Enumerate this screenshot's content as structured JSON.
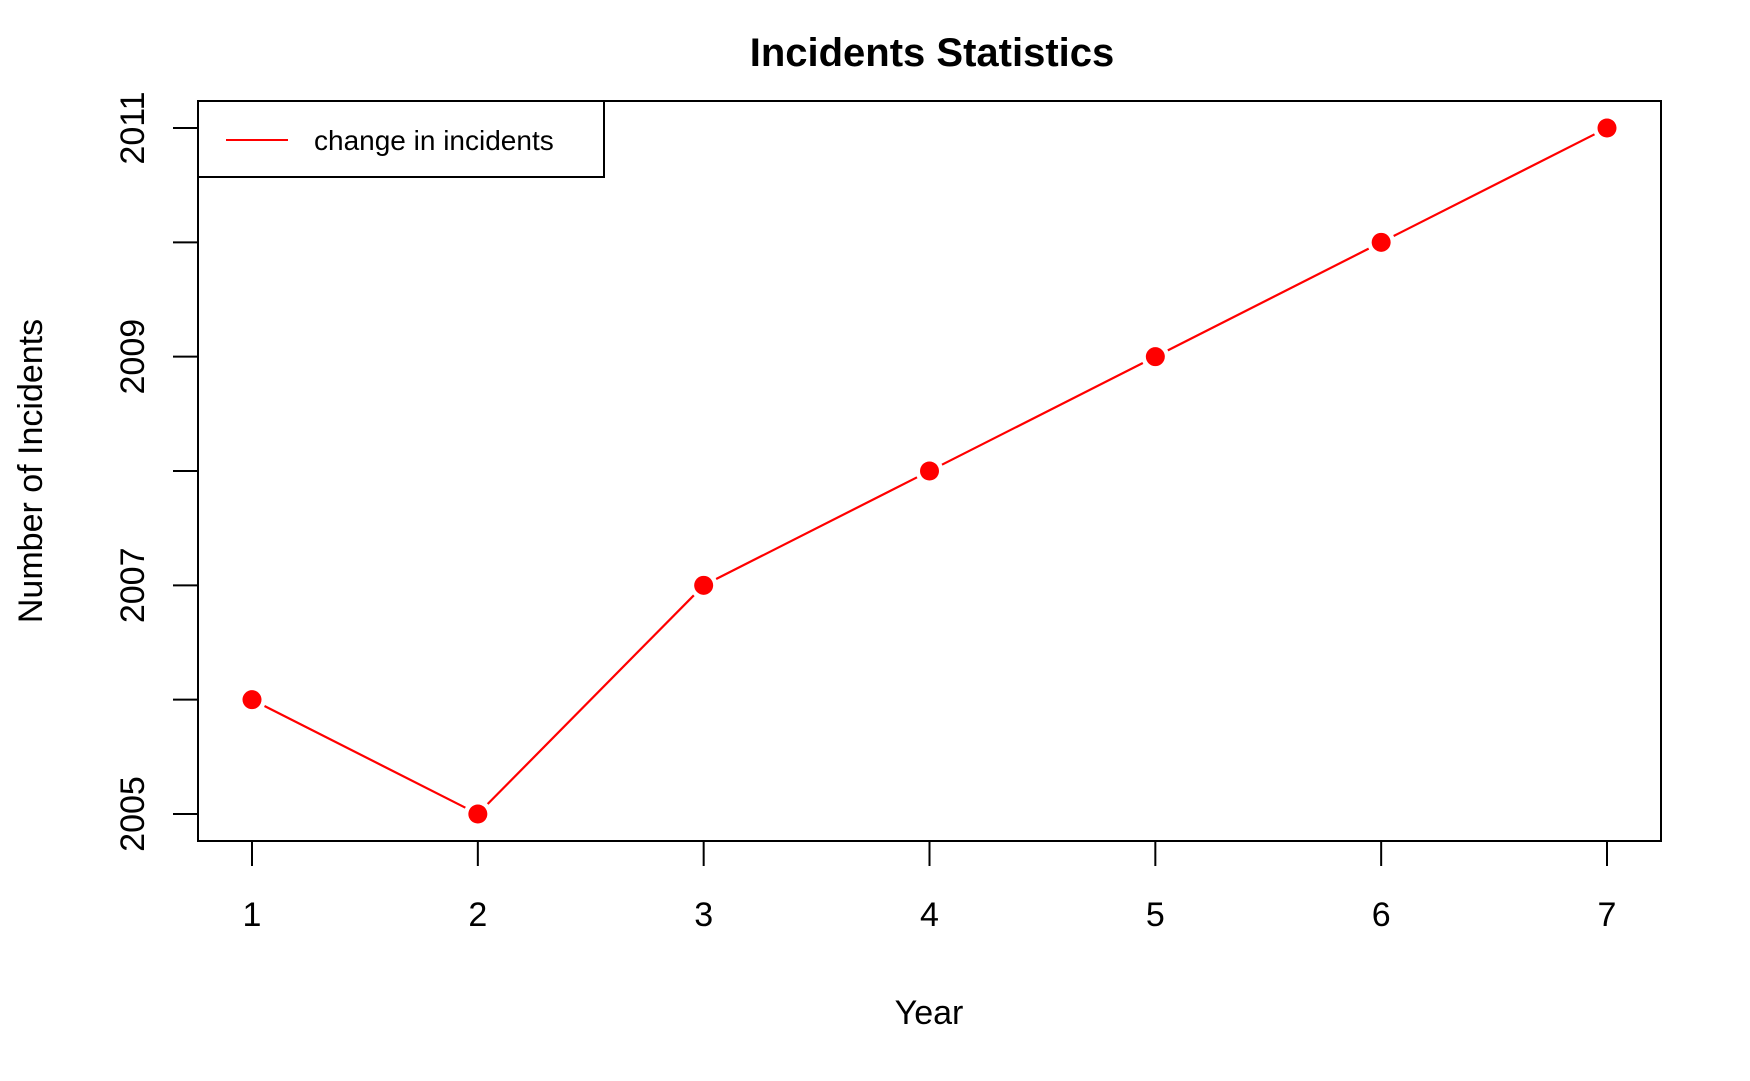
{
  "chart_data": {
    "type": "line",
    "title": "Incidents Statistics",
    "xlabel": "Year",
    "ylabel": "Number of Incidents",
    "x": [
      1,
      2,
      3,
      4,
      5,
      6,
      7
    ],
    "series": [
      {
        "name": "change in incidents",
        "values": [
          2006,
          2005,
          2007,
          2008,
          2009,
          2010,
          2011
        ],
        "color": "#ff0000"
      }
    ],
    "x_ticks": [
      1,
      2,
      3,
      4,
      5,
      6,
      7
    ],
    "y_ticks_labeled": [
      2005,
      2007,
      2009,
      2011
    ],
    "y_ticks_minor": [
      2006,
      2008,
      2010
    ],
    "xlim": [
      1,
      7
    ],
    "ylim": [
      2005,
      2011
    ],
    "grid": false,
    "legend_position": "top-left",
    "marker": "filled-circle"
  }
}
